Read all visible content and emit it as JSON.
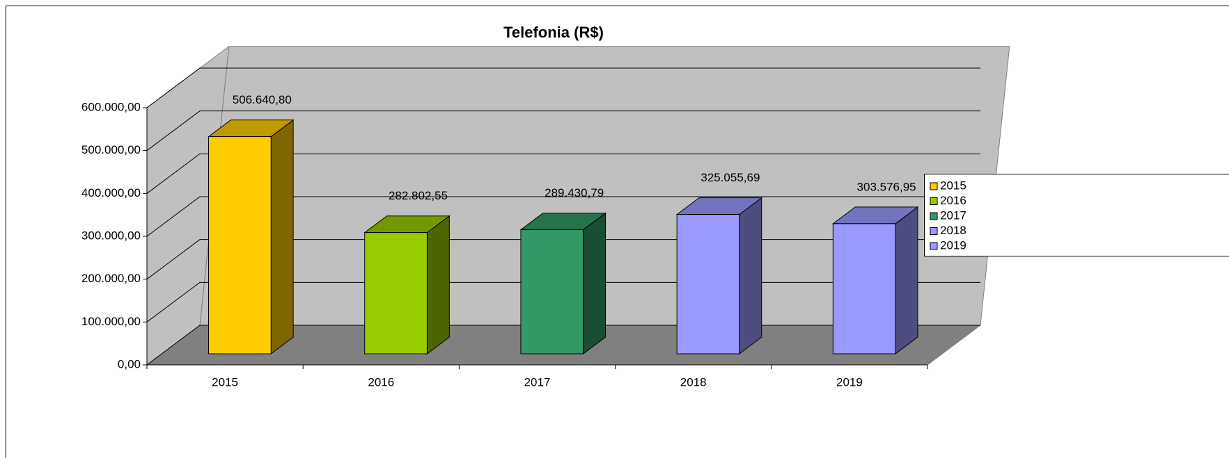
{
  "chart_data": {
    "type": "bar3d",
    "title": "Telefonia (R$)",
    "categories": [
      "2015",
      "2016",
      "2017",
      "2018",
      "2019"
    ],
    "values": [
      506640.8,
      282802.55,
      289430.79,
      325055.69,
      303576.95
    ],
    "value_labels": [
      "506.640,80",
      "282.802,55",
      "289.430,79",
      "325.055,69",
      "303.576,95"
    ],
    "colors": [
      "#ffcc00",
      "#99cc00",
      "#339966",
      "#9999ff",
      "#9999ff"
    ],
    "ylim": [
      0,
      600000
    ],
    "yticks": [
      {
        "value": 0,
        "label": "0,00"
      },
      {
        "value": 100000,
        "label": "100.000,00"
      },
      {
        "value": 200000,
        "label": "200.000,00"
      },
      {
        "value": 300000,
        "label": "300.000,00"
      },
      {
        "value": 400000,
        "label": "400.000,00"
      },
      {
        "value": 500000,
        "label": "500.000,00"
      },
      {
        "value": 600000,
        "label": "600.000,00"
      }
    ],
    "grid": true,
    "legend": "right"
  }
}
